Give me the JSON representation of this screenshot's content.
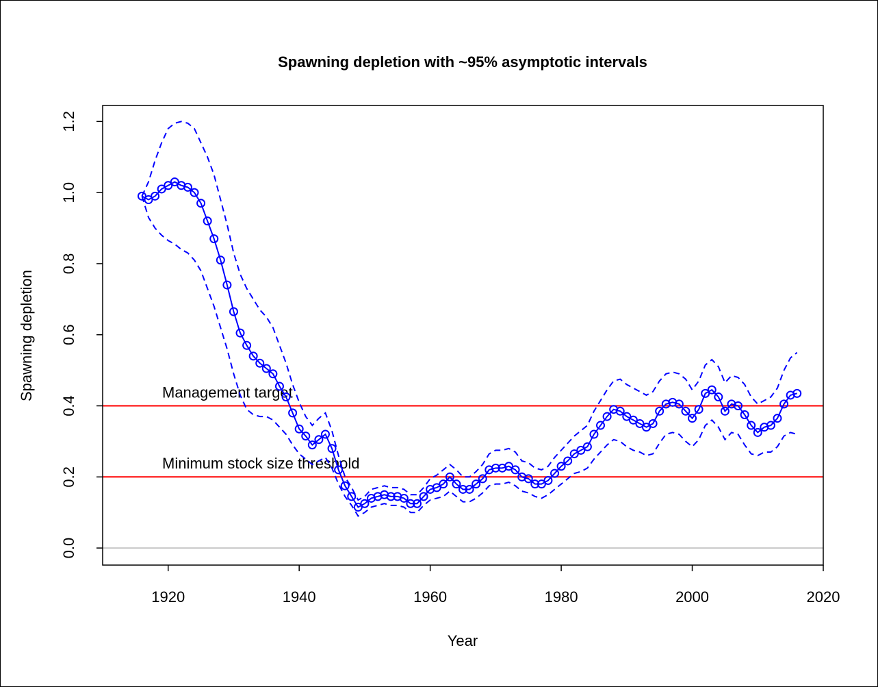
{
  "chart_data": {
    "type": "line",
    "title": "Spawning depletion with ~95% asymptotic intervals",
    "xlabel": "Year",
    "ylabel": "Spawning depletion",
    "x": [
      1916,
      1917,
      1918,
      1919,
      1920,
      1921,
      1922,
      1923,
      1924,
      1925,
      1926,
      1927,
      1928,
      1929,
      1930,
      1931,
      1932,
      1933,
      1934,
      1935,
      1936,
      1937,
      1938,
      1939,
      1940,
      1941,
      1942,
      1943,
      1944,
      1945,
      1946,
      1947,
      1948,
      1949,
      1950,
      1951,
      1952,
      1953,
      1954,
      1955,
      1956,
      1957,
      1958,
      1959,
      1960,
      1961,
      1962,
      1963,
      1964,
      1965,
      1966,
      1967,
      1968,
      1969,
      1970,
      1971,
      1972,
      1973,
      1974,
      1975,
      1976,
      1977,
      1978,
      1979,
      1980,
      1981,
      1982,
      1983,
      1984,
      1985,
      1986,
      1987,
      1988,
      1989,
      1990,
      1991,
      1992,
      1993,
      1994,
      1995,
      1996,
      1997,
      1998,
      1999,
      2000,
      2001,
      2002,
      2003,
      2004,
      2005,
      2006,
      2007,
      2008,
      2009,
      2010,
      2011,
      2012,
      2013,
      2014,
      2015,
      2016
    ],
    "series": [
      {
        "color": "#0000ff",
        "line_style": "solid",
        "markers": true,
        "values": [
          0.99,
          0.98,
          0.99,
          1.01,
          1.02,
          1.03,
          1.02,
          1.015,
          1.0,
          0.97,
          0.92,
          0.87,
          0.81,
          0.74,
          0.665,
          0.605,
          0.57,
          0.54,
          0.52,
          0.505,
          0.49,
          0.455,
          0.425,
          0.38,
          0.335,
          0.315,
          0.29,
          0.305,
          0.32,
          0.28,
          0.22,
          0.175,
          0.145,
          0.115,
          0.125,
          0.14,
          0.145,
          0.15,
          0.145,
          0.145,
          0.14,
          0.125,
          0.125,
          0.145,
          0.165,
          0.17,
          0.18,
          0.2,
          0.18,
          0.165,
          0.165,
          0.18,
          0.195,
          0.22,
          0.225,
          0.225,
          0.23,
          0.22,
          0.2,
          0.195,
          0.18,
          0.18,
          0.19,
          0.21,
          0.23,
          0.245,
          0.265,
          0.275,
          0.285,
          0.32,
          0.345,
          0.37,
          0.39,
          0.385,
          0.37,
          0.36,
          0.35,
          0.34,
          0.35,
          0.385,
          0.405,
          0.41,
          0.405,
          0.385,
          0.365,
          0.39,
          0.435,
          0.445,
          0.425,
          0.385,
          0.405,
          0.4,
          0.375,
          0.345,
          0.325,
          0.34,
          0.345,
          0.365,
          0.405,
          0.43,
          0.435
        ]
      },
      {
        "color": "#0000ff",
        "line_style": "dashed",
        "markers": false,
        "values": [
          0.99,
          1.03,
          1.09,
          1.14,
          1.18,
          1.195,
          1.2,
          1.195,
          1.18,
          1.14,
          1.1,
          1.05,
          0.98,
          0.91,
          0.83,
          0.77,
          0.73,
          0.7,
          0.67,
          0.65,
          0.62,
          0.57,
          0.52,
          0.46,
          0.41,
          0.37,
          0.345,
          0.365,
          0.38,
          0.33,
          0.26,
          0.2,
          0.17,
          0.135,
          0.145,
          0.165,
          0.17,
          0.175,
          0.17,
          0.17,
          0.165,
          0.15,
          0.15,
          0.17,
          0.195,
          0.205,
          0.22,
          0.235,
          0.22,
          0.2,
          0.2,
          0.215,
          0.235,
          0.265,
          0.275,
          0.275,
          0.28,
          0.27,
          0.245,
          0.24,
          0.225,
          0.22,
          0.23,
          0.255,
          0.275,
          0.295,
          0.315,
          0.33,
          0.345,
          0.385,
          0.415,
          0.445,
          0.47,
          0.475,
          0.46,
          0.45,
          0.44,
          0.43,
          0.44,
          0.47,
          0.49,
          0.495,
          0.49,
          0.475,
          0.445,
          0.47,
          0.515,
          0.53,
          0.51,
          0.465,
          0.485,
          0.48,
          0.46,
          0.425,
          0.405,
          0.415,
          0.425,
          0.45,
          0.5,
          0.535,
          0.55
        ]
      },
      {
        "color": "#0000ff",
        "line_style": "dashed",
        "markers": false,
        "values": [
          0.99,
          0.93,
          0.9,
          0.88,
          0.865,
          0.855,
          0.84,
          0.83,
          0.81,
          0.78,
          0.73,
          0.68,
          0.62,
          0.56,
          0.49,
          0.43,
          0.39,
          0.375,
          0.37,
          0.37,
          0.36,
          0.34,
          0.32,
          0.29,
          0.265,
          0.25,
          0.235,
          0.245,
          0.255,
          0.225,
          0.18,
          0.145,
          0.12,
          0.09,
          0.1,
          0.115,
          0.12,
          0.125,
          0.12,
          0.12,
          0.115,
          0.1,
          0.1,
          0.12,
          0.135,
          0.14,
          0.145,
          0.16,
          0.145,
          0.13,
          0.13,
          0.14,
          0.155,
          0.175,
          0.18,
          0.18,
          0.185,
          0.175,
          0.16,
          0.155,
          0.145,
          0.14,
          0.15,
          0.165,
          0.18,
          0.195,
          0.21,
          0.215,
          0.225,
          0.25,
          0.27,
          0.29,
          0.305,
          0.3,
          0.285,
          0.275,
          0.27,
          0.26,
          0.265,
          0.295,
          0.32,
          0.325,
          0.32,
          0.3,
          0.285,
          0.305,
          0.345,
          0.36,
          0.34,
          0.305,
          0.325,
          0.32,
          0.29,
          0.265,
          0.26,
          0.27,
          0.27,
          0.285,
          0.315,
          0.325,
          0.32
        ]
      }
    ],
    "hlines": [
      {
        "value": 0.4,
        "label": "Management target",
        "color": "#ff0000"
      },
      {
        "value": 0.2,
        "label": "Minimum stock size threshold",
        "color": "#ff0000"
      },
      {
        "value": 0,
        "color": "#c8c8c8"
      }
    ],
    "xlim": [
      1910,
      2020
    ],
    "ylim": [
      -0.048,
      1.245
    ],
    "xticks": [
      1920,
      1940,
      1960,
      1980,
      2000,
      2020
    ],
    "yticks": [
      {
        "value": 0,
        "label": "0.0"
      },
      0.2,
      0.4,
      0.6,
      0.8,
      {
        "value": 1,
        "label": "1.0"
      },
      1.2
    ]
  }
}
